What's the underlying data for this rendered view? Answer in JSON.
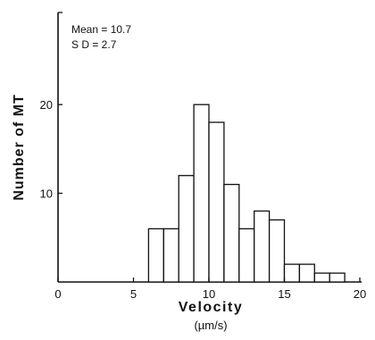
{
  "chart_data": {
    "type": "bar",
    "title": "",
    "xlabel": "Velocity",
    "xunit": "(µm/s)",
    "ylabel": "Number of MT",
    "annotations": [
      "Mean = 10.7",
      "S D = 2.7"
    ],
    "x_ticks": [
      "0",
      "5",
      "10",
      "15",
      "20"
    ],
    "y_ticks": [
      "10",
      "20"
    ],
    "xlim": [
      0,
      20
    ],
    "ylim": [
      0,
      27
    ],
    "bin_width": 1,
    "bins": [
      {
        "x0": 6,
        "value": 6
      },
      {
        "x0": 7,
        "value": 6
      },
      {
        "x0": 8,
        "value": 12
      },
      {
        "x0": 9,
        "value": 20
      },
      {
        "x0": 10,
        "value": 18
      },
      {
        "x0": 11,
        "value": 11
      },
      {
        "x0": 12,
        "value": 6
      },
      {
        "x0": 13,
        "value": 8
      },
      {
        "x0": 14,
        "value": 7
      },
      {
        "x0": 15,
        "value": 2
      },
      {
        "x0": 16,
        "value": 2
      },
      {
        "x0": 17,
        "value": 1
      },
      {
        "x0": 18,
        "value": 1
      }
    ],
    "grid": false,
    "legend": "none"
  }
}
